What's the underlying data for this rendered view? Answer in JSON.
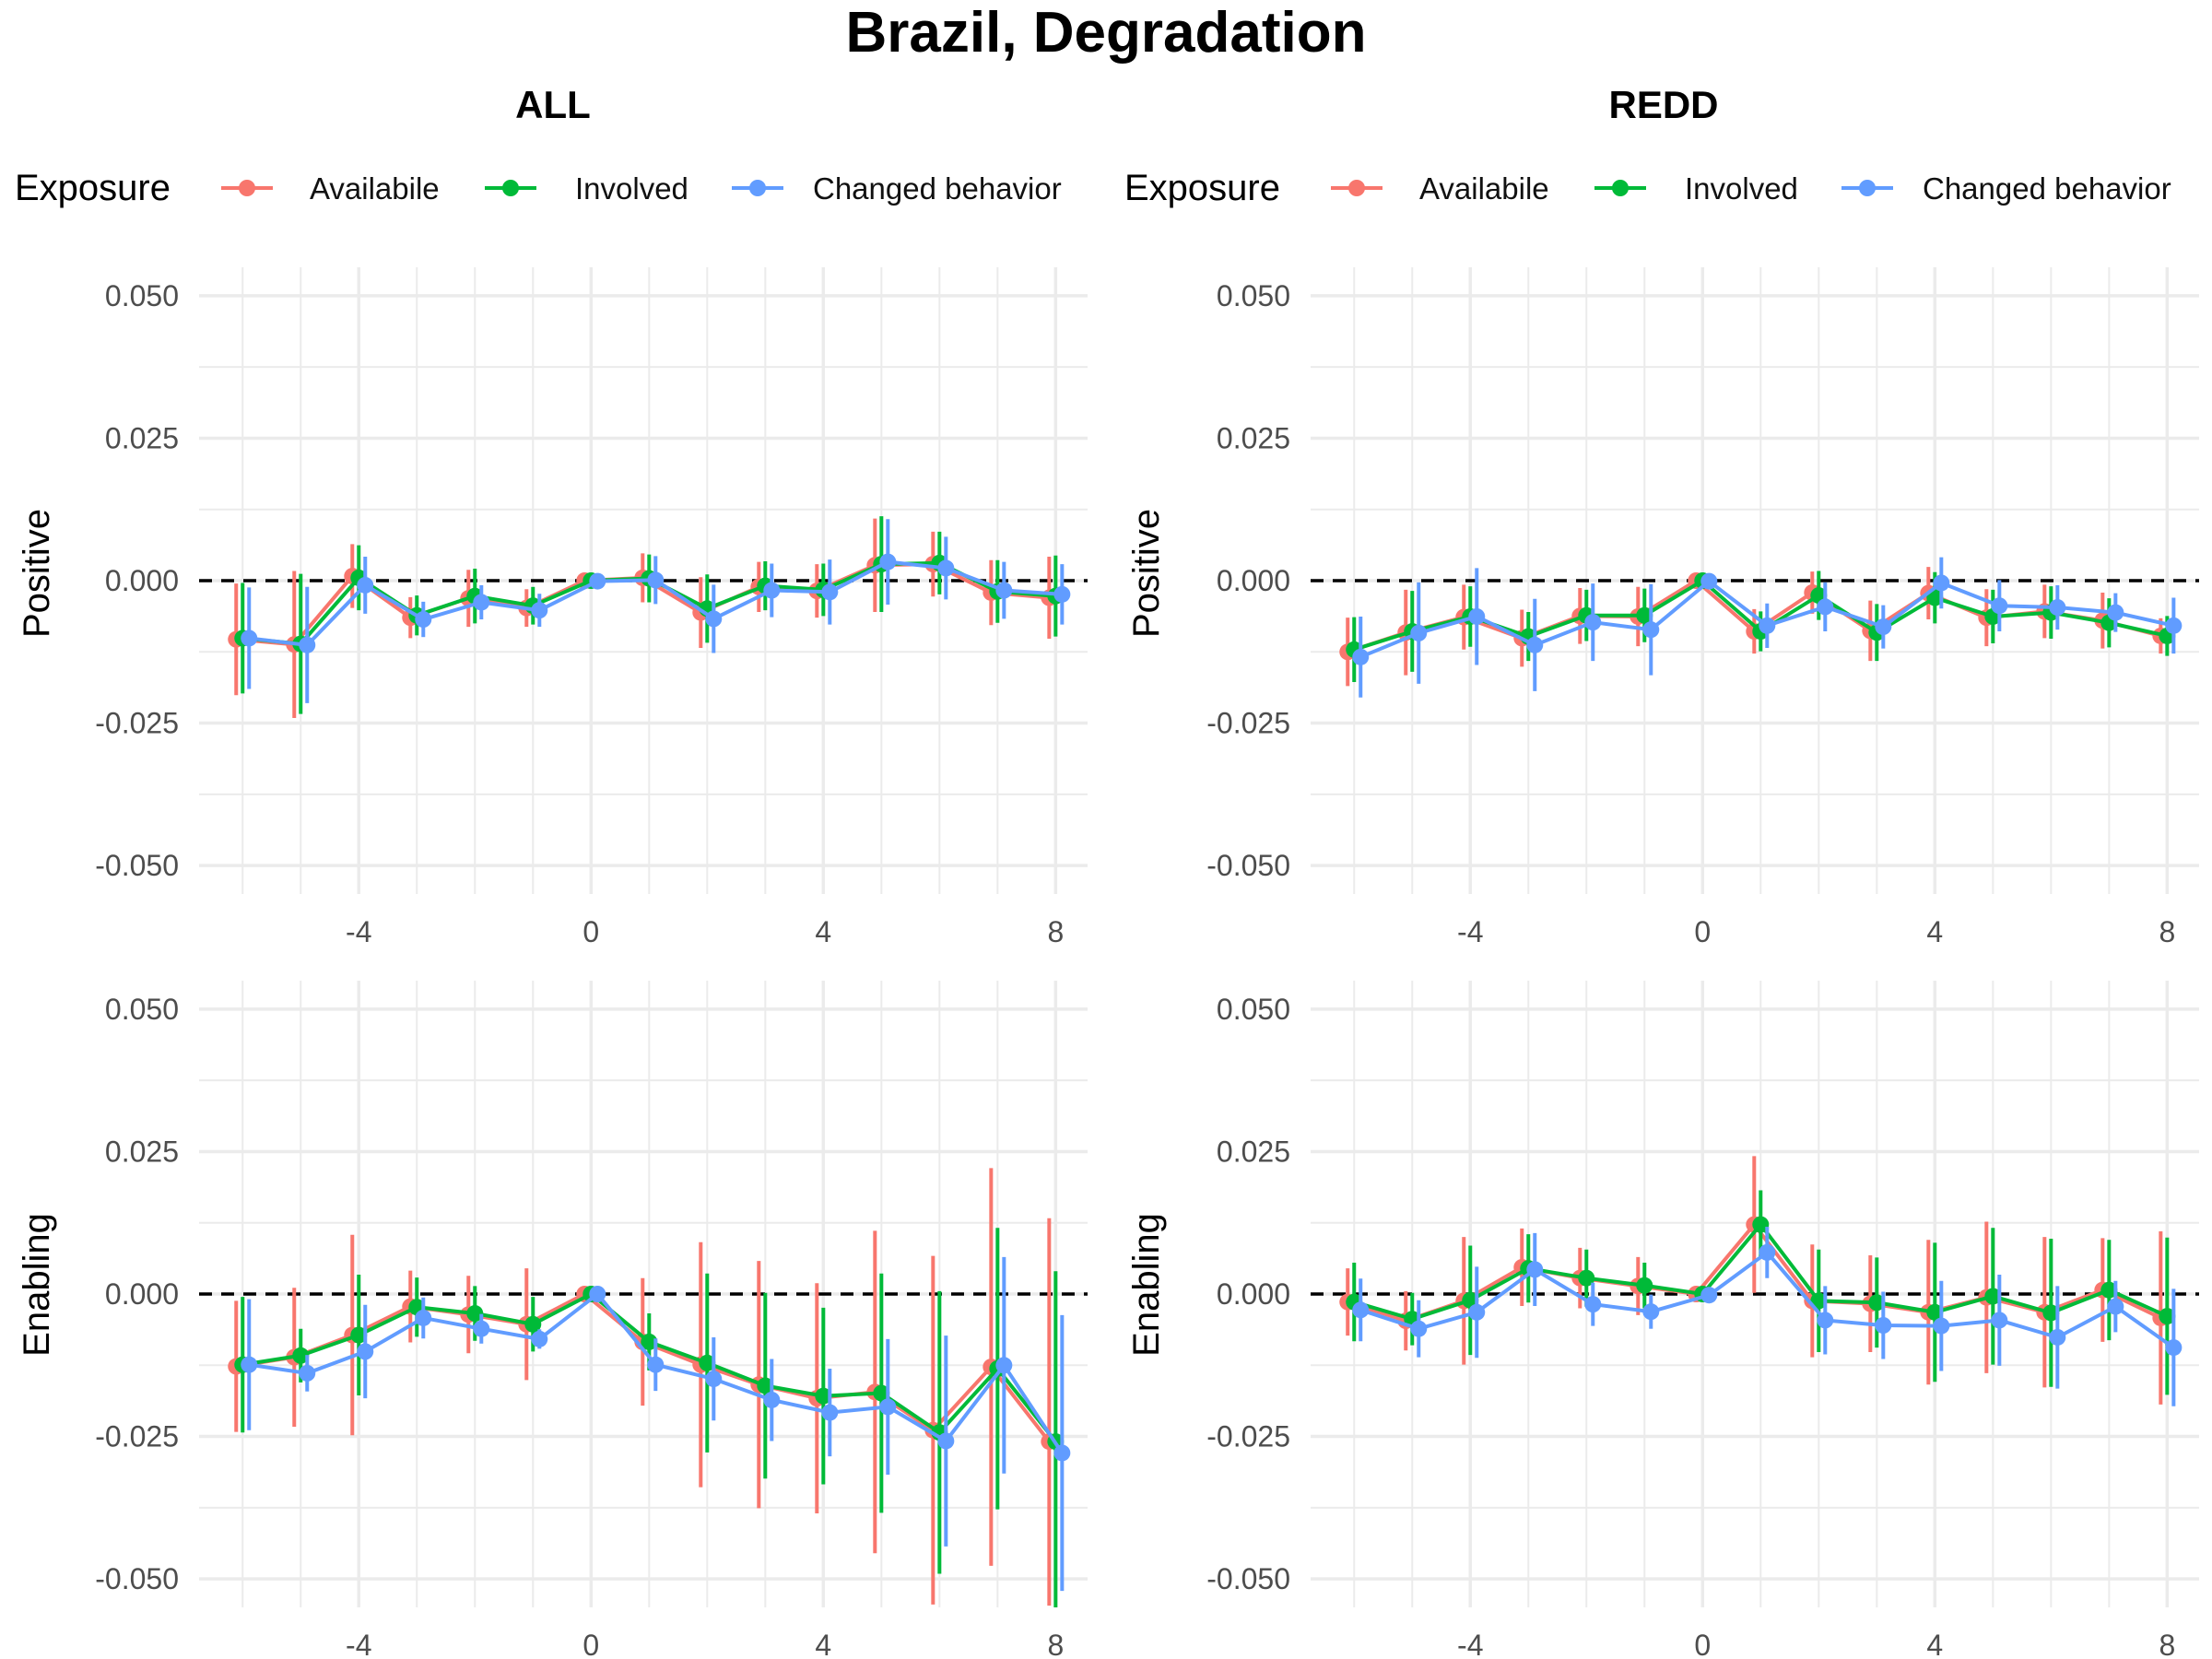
{
  "title": "Brazil, Degradation",
  "legend": {
    "title": "Exposure",
    "entries": [
      {
        "label": "Availabile",
        "color": "#F8766D"
      },
      {
        "label": "Involved",
        "color": "#00BA38"
      },
      {
        "label": "Changed behavior",
        "color": "#619CFF"
      }
    ]
  },
  "colors": {
    "background": "#ffffff",
    "grid": "#ebebeb",
    "zero_line": "#000000"
  },
  "chart_data": {
    "type": "line",
    "facet_columns": [
      "ALL",
      "REDD"
    ],
    "facet_rows": [
      "Positive",
      "Enabling"
    ],
    "x": [
      -6,
      -5,
      -4,
      -3,
      -2,
      -1,
      0,
      1,
      2,
      3,
      4,
      5,
      6,
      7,
      8
    ],
    "x_ticks": [
      "-4",
      "0",
      "4",
      "8"
    ],
    "ylim": [
      -0.055,
      0.055
    ],
    "y_ticks": [
      "0.050",
      "0.025",
      "0.000",
      "-0.025",
      "-0.050"
    ],
    "reference_line": {
      "y": 0,
      "style": "dashed"
    },
    "grid": true,
    "legend_position": "top",
    "panels": [
      {
        "column": "ALL",
        "row": "Positive",
        "series": [
          {
            "name": "Availabile",
            "values": [
              -0.0103,
              -0.0112,
              0.0008,
              -0.0065,
              -0.0031,
              -0.0048,
              0.0,
              0.0005,
              -0.0056,
              -0.0011,
              -0.0018,
              0.0027,
              0.0029,
              -0.0021,
              -0.003
            ],
            "lower": [
              -0.0201,
              -0.0241,
              -0.0048,
              -0.0101,
              -0.0081,
              -0.0081,
              0.0,
              -0.0038,
              -0.0118,
              -0.0055,
              -0.0065,
              -0.0055,
              -0.0028,
              -0.0078,
              -0.0102
            ],
            "upper": [
              -0.0005,
              0.0017,
              0.0064,
              -0.0029,
              0.0019,
              -0.0015,
              0.0,
              0.0048,
              0.0006,
              0.0033,
              0.0029,
              0.0109,
              0.0086,
              0.0036,
              0.0042
            ]
          },
          {
            "name": "Involved",
            "values": [
              -0.0101,
              -0.0111,
              0.0005,
              -0.0061,
              -0.0027,
              -0.0044,
              0.0,
              0.0004,
              -0.0049,
              -0.0009,
              -0.0016,
              0.0029,
              0.0031,
              -0.0019,
              -0.0027
            ],
            "lower": [
              -0.0198,
              -0.0234,
              -0.0052,
              -0.0096,
              -0.0075,
              -0.0077,
              0.0,
              -0.0038,
              -0.0109,
              -0.0052,
              -0.0062,
              -0.0055,
              -0.0024,
              -0.0074,
              -0.0098
            ],
            "upper": [
              -0.0004,
              0.0012,
              0.0062,
              -0.0026,
              0.0021,
              -0.0011,
              0.0,
              0.0046,
              0.0011,
              0.0034,
              0.003,
              0.0113,
              0.0086,
              0.0036,
              0.0044
            ]
          },
          {
            "name": "Changed behavior",
            "values": [
              -0.0101,
              -0.0113,
              -0.0008,
              -0.0068,
              -0.0038,
              -0.0052,
              -0.0001,
              0.0001,
              -0.0067,
              -0.0017,
              -0.002,
              0.0033,
              0.0022,
              -0.0017,
              -0.0024
            ],
            "lower": [
              -0.019,
              -0.0215,
              -0.0058,
              -0.0099,
              -0.0068,
              -0.0081,
              -0.0014,
              -0.0041,
              -0.0127,
              -0.0064,
              -0.0077,
              -0.0042,
              -0.0033,
              -0.0067,
              -0.0077
            ],
            "upper": [
              -0.0012,
              -0.0011,
              0.0042,
              -0.0037,
              -0.0008,
              -0.0023,
              0.0012,
              0.0043,
              -0.0007,
              0.003,
              0.0037,
              0.0108,
              0.0077,
              0.0033,
              0.0029
            ]
          }
        ]
      },
      {
        "column": "REDD",
        "row": "Positive",
        "series": [
          {
            "name": "Availabile",
            "values": [
              -0.0125,
              -0.0091,
              -0.0064,
              -0.0101,
              -0.0062,
              -0.0063,
              0.0,
              -0.0089,
              -0.0021,
              -0.0088,
              -0.0022,
              -0.0065,
              -0.0054,
              -0.007,
              -0.0097
            ],
            "lower": [
              -0.0185,
              -0.0166,
              -0.0121,
              -0.0151,
              -0.0111,
              -0.0115,
              -0.0004,
              -0.0128,
              -0.0058,
              -0.0141,
              -0.0068,
              -0.0115,
              -0.0101,
              -0.0119,
              -0.0128
            ],
            "upper": [
              -0.0065,
              -0.0016,
              -0.0007,
              -0.0051,
              -0.0013,
              -0.0011,
              0.0004,
              -0.005,
              0.0016,
              -0.0035,
              0.0024,
              -0.0015,
              -0.0007,
              -0.0021,
              -0.0066
            ]
          },
          {
            "name": "Involved",
            "values": [
              -0.0121,
              -0.0089,
              -0.0063,
              -0.0098,
              -0.0061,
              -0.0061,
              0.0,
              -0.0089,
              -0.0026,
              -0.0091,
              -0.003,
              -0.0063,
              -0.0056,
              -0.0074,
              -0.0097
            ],
            "lower": [
              -0.0178,
              -0.016,
              -0.0116,
              -0.0141,
              -0.0106,
              -0.0108,
              -0.0004,
              -0.0124,
              -0.0069,
              -0.0141,
              -0.0075,
              -0.011,
              -0.0102,
              -0.0117,
              -0.0132
            ],
            "upper": [
              -0.0064,
              -0.0018,
              -0.001,
              -0.0055,
              -0.0016,
              -0.0014,
              0.0004,
              -0.0054,
              0.0017,
              -0.0041,
              0.0015,
              -0.0016,
              -0.001,
              -0.0031,
              -0.0062
            ]
          },
          {
            "name": "Changed behavior",
            "values": [
              -0.0134,
              -0.0092,
              -0.0063,
              -0.0113,
              -0.0073,
              -0.0086,
              -0.0001,
              -0.0079,
              -0.0046,
              -0.0081,
              -0.0004,
              -0.0044,
              -0.0047,
              -0.0056,
              -0.0079
            ],
            "lower": [
              -0.0205,
              -0.0181,
              -0.0148,
              -0.0194,
              -0.0141,
              -0.0166,
              -0.0005,
              -0.0118,
              -0.0089,
              -0.0119,
              -0.0049,
              -0.0089,
              -0.0086,
              -0.009,
              -0.0128
            ],
            "upper": [
              -0.0063,
              -0.0003,
              0.0022,
              -0.0032,
              -0.0005,
              -0.0006,
              0.0003,
              -0.004,
              -0.0003,
              -0.0043,
              0.0041,
              0.0001,
              -0.0008,
              -0.0022,
              -0.003
            ]
          }
        ]
      },
      {
        "column": "ALL",
        "row": "Enabling",
        "series": [
          {
            "name": "Availabile",
            "values": [
              -0.0127,
              -0.0111,
              -0.0072,
              -0.0022,
              -0.0036,
              -0.0053,
              0.0,
              -0.0084,
              -0.0124,
              -0.0159,
              -0.0183,
              -0.0172,
              -0.0239,
              -0.0128,
              -0.0259
            ],
            "lower": [
              -0.0242,
              -0.0233,
              -0.0248,
              -0.0085,
              -0.0104,
              -0.0151,
              -0.0003,
              -0.0196,
              -0.0339,
              -0.0376,
              -0.0385,
              -0.0455,
              -0.0545,
              -0.0477,
              -0.0547
            ],
            "upper": [
              -0.0012,
              0.0011,
              0.0104,
              0.0041,
              0.0032,
              0.0045,
              0.0003,
              0.0028,
              0.0091,
              0.0058,
              0.0019,
              0.0111,
              0.0067,
              0.0221,
              0.0133
            ]
          },
          {
            "name": "Involved",
            "values": [
              -0.0124,
              -0.0108,
              -0.0072,
              -0.0023,
              -0.0034,
              -0.0053,
              0.0,
              -0.0084,
              -0.0121,
              -0.0161,
              -0.0179,
              -0.0174,
              -0.0243,
              -0.0131,
              -0.0259
            ],
            "lower": [
              -0.0243,
              -0.0155,
              -0.0178,
              -0.0075,
              -0.0082,
              -0.0101,
              -0.0003,
              -0.0134,
              -0.0278,
              -0.0324,
              -0.0334,
              -0.0384,
              -0.0491,
              -0.0378,
              -0.0558
            ],
            "upper": [
              -0.0005,
              -0.0061,
              0.0034,
              0.0029,
              0.0014,
              -0.0005,
              0.0003,
              -0.0034,
              0.0036,
              0.0002,
              -0.0024,
              0.0036,
              0.0005,
              0.0116,
              0.004
            ]
          },
          {
            "name": "Changed behavior",
            "values": [
              -0.0124,
              -0.0139,
              -0.0101,
              -0.0042,
              -0.0061,
              -0.0079,
              0.0,
              -0.0124,
              -0.0149,
              -0.0186,
              -0.0208,
              -0.0198,
              -0.0258,
              -0.0125,
              -0.0279
            ],
            "lower": [
              -0.0239,
              -0.0171,
              -0.0183,
              -0.0078,
              -0.0087,
              -0.0096,
              -0.0002,
              -0.017,
              -0.0222,
              -0.0258,
              -0.0285,
              -0.0317,
              -0.0443,
              -0.0315,
              -0.0521
            ],
            "upper": [
              -0.0009,
              -0.0107,
              -0.0019,
              -0.0006,
              -0.0035,
              -0.0062,
              0.0002,
              -0.0078,
              -0.0076,
              -0.0114,
              -0.0131,
              -0.0079,
              -0.0073,
              0.0065,
              -0.0037
            ]
          }
        ]
      },
      {
        "column": "REDD",
        "row": "Enabling",
        "series": [
          {
            "name": "Availabile",
            "values": [
              -0.0014,
              -0.0047,
              -0.0012,
              0.0047,
              0.0028,
              0.0014,
              0.0,
              0.0122,
              -0.0012,
              -0.0017,
              -0.0032,
              -0.0006,
              -0.0032,
              0.0007,
              -0.0042
            ],
            "lower": [
              -0.0073,
              -0.0099,
              -0.0124,
              -0.0021,
              -0.0025,
              -0.0037,
              -0.0003,
              0.0002,
              -0.0111,
              -0.0102,
              -0.0159,
              -0.0139,
              -0.0164,
              -0.0084,
              -0.0194
            ],
            "upper": [
              0.0045,
              0.0005,
              0.01,
              0.0115,
              0.0081,
              0.0065,
              0.0003,
              0.0242,
              0.0087,
              0.0068,
              0.0095,
              0.0127,
              0.01,
              0.0098,
              0.011
            ]
          },
          {
            "name": "Involved",
            "values": [
              -0.0014,
              -0.0044,
              -0.0011,
              0.0045,
              0.0028,
              0.0015,
              0.0,
              0.0122,
              -0.0012,
              -0.0015,
              -0.0032,
              -0.0004,
              -0.0033,
              0.0007,
              -0.0039
            ],
            "lower": [
              -0.0083,
              -0.009,
              -0.0107,
              -0.0015,
              -0.0022,
              -0.0025,
              -0.0003,
              0.0062,
              -0.0102,
              -0.0094,
              -0.0154,
              -0.0124,
              -0.0163,
              -0.0081,
              -0.0177
            ],
            "upper": [
              0.0055,
              0.0002,
              0.0085,
              0.0105,
              0.0078,
              0.0055,
              0.0003,
              0.0182,
              0.0078,
              0.0064,
              0.009,
              0.0116,
              0.0097,
              0.0095,
              0.0099
            ]
          },
          {
            "name": "Changed behavior",
            "values": [
              -0.0028,
              -0.0061,
              -0.0032,
              0.0043,
              -0.0018,
              -0.0031,
              -0.0002,
              0.0073,
              -0.0046,
              -0.0055,
              -0.0056,
              -0.0046,
              -0.0076,
              -0.0022,
              -0.0094
            ],
            "lower": [
              -0.0083,
              -0.0111,
              -0.0112,
              -0.0021,
              -0.0056,
              -0.0061,
              -0.0006,
              0.0028,
              -0.0106,
              -0.0114,
              -0.0135,
              -0.0126,
              -0.0166,
              -0.0067,
              -0.0197
            ],
            "upper": [
              0.0027,
              -0.0011,
              0.0048,
              0.0107,
              0.002,
              -0.0001,
              0.0002,
              0.0118,
              0.0014,
              0.0004,
              0.0023,
              0.0034,
              0.0014,
              0.0023,
              0.0009
            ]
          }
        ]
      }
    ]
  }
}
